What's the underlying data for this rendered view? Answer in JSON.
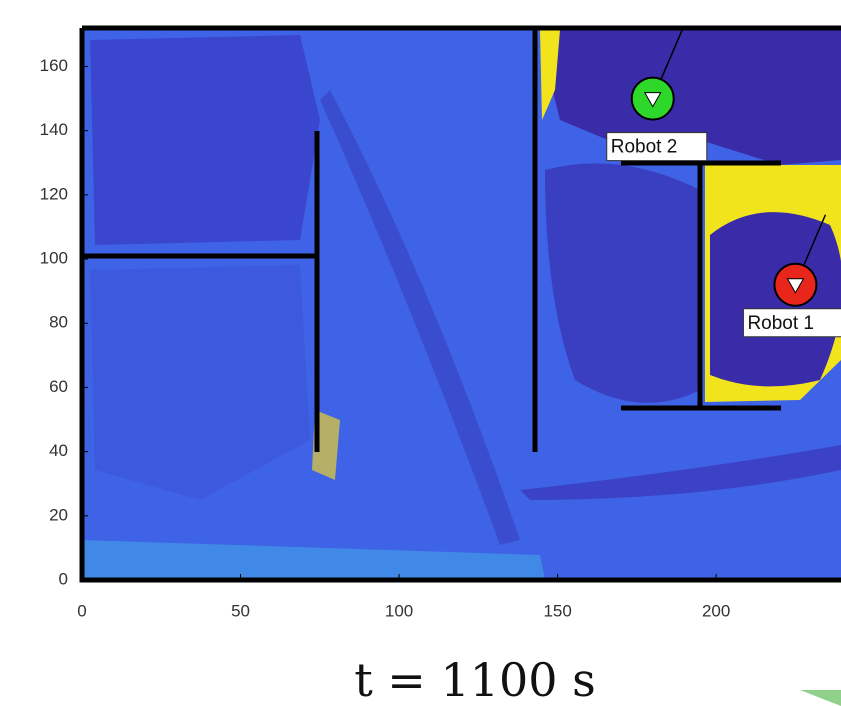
{
  "chart_data": {
    "type": "map",
    "caption": "t = 1100 s",
    "xlim": [
      0,
      240
    ],
    "ylim": [
      0,
      172
    ],
    "xticks": [
      0,
      50,
      100,
      150,
      200
    ],
    "yticks": [
      0,
      20,
      40,
      60,
      80,
      100,
      120,
      140,
      160
    ],
    "robots": [
      {
        "name": "Robot 1",
        "x": 225,
        "y": 92,
        "color": "#e8261c"
      },
      {
        "name": "Robot 2",
        "x": 180,
        "y": 150,
        "color": "#2ed82a"
      }
    ]
  }
}
